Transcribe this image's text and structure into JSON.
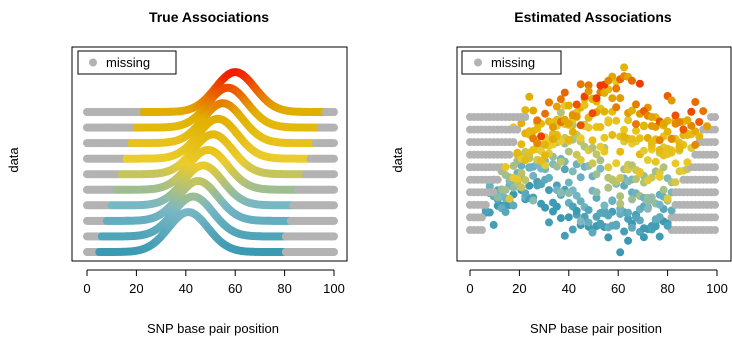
{
  "chart_data": [
    {
      "type": "scatter",
      "title": "True Associations",
      "xlabel": "SNP base pair position",
      "ylabel": "data",
      "xlim": [
        0,
        100
      ],
      "xticks": [
        "0",
        "20",
        "40",
        "60",
        "80",
        "100"
      ],
      "legend": {
        "label": "missing",
        "position": "top-left",
        "color": "#B3B3B3"
      },
      "palette": [
        "#3B9AB2",
        "#78B7C5",
        "#EBCC2A",
        "#E1AF00",
        "#F21A00"
      ],
      "missing_color": "#B3B3B3",
      "series_count": 10,
      "series": [
        {
          "observed_range": [
            5,
            80
          ],
          "peak_x": 41,
          "peak_height": 0.55
        },
        {
          "observed_range": [
            6,
            80
          ],
          "peak_x": 43,
          "peak_height": 0.55
        },
        {
          "observed_range": [
            8,
            82
          ],
          "peak_x": 45,
          "peak_height": 0.55
        },
        {
          "observed_range": [
            10,
            83
          ],
          "peak_x": 47,
          "peak_height": 0.55
        },
        {
          "observed_range": [
            12,
            85
          ],
          "peak_x": 49,
          "peak_height": 0.55
        },
        {
          "observed_range": [
            14,
            88
          ],
          "peak_x": 51,
          "peak_height": 0.55
        },
        {
          "observed_range": [
            16,
            90
          ],
          "peak_x": 53,
          "peak_height": 0.55
        },
        {
          "observed_range": [
            18,
            92
          ],
          "peak_x": 55,
          "peak_height": 0.55
        },
        {
          "observed_range": [
            20,
            94
          ],
          "peak_x": 57,
          "peak_height": 0.55
        },
        {
          "observed_range": [
            23,
            96
          ],
          "peak_x": 60,
          "peak_height": 0.55
        }
      ]
    },
    {
      "type": "scatter",
      "title": "Estimated Associations",
      "xlabel": "SNP base pair position",
      "ylabel": "data",
      "xlim": [
        0,
        100
      ],
      "xticks": [
        "0",
        "20",
        "40",
        "60",
        "80",
        "100"
      ],
      "legend": {
        "label": "missing",
        "position": "top-left",
        "color": "#B3B3B3"
      },
      "palette": [
        "#3B9AB2",
        "#78B7C5",
        "#EBCC2A",
        "#E1AF00",
        "#F21A00"
      ],
      "missing_color": "#B3B3B3",
      "series_count": 10,
      "series": [
        {
          "observed_range": [
            5,
            80
          ]
        },
        {
          "observed_range": [
            6,
            80
          ]
        },
        {
          "observed_range": [
            8,
            82
          ]
        },
        {
          "observed_range": [
            10,
            83
          ]
        },
        {
          "observed_range": [
            12,
            85
          ]
        },
        {
          "observed_range": [
            14,
            88
          ]
        },
        {
          "observed_range": [
            16,
            90
          ]
        },
        {
          "observed_range": [
            18,
            92
          ]
        },
        {
          "observed_range": [
            20,
            94
          ]
        },
        {
          "observed_range": [
            23,
            96
          ]
        }
      ]
    }
  ]
}
